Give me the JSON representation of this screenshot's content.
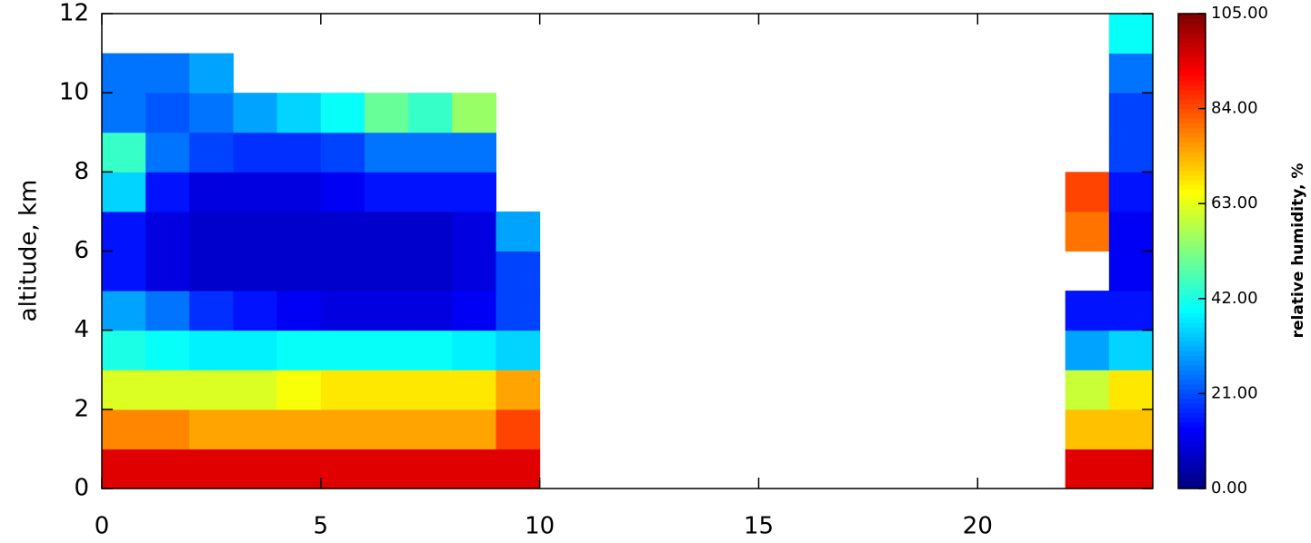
{
  "chart_data": {
    "type": "heatmap",
    "ylabel": "altitude, km",
    "colorbar_label": "relative humidity, %",
    "colormap": "jet",
    "x": [
      0,
      1,
      2,
      3,
      4,
      5,
      6,
      7,
      8,
      9,
      10,
      11,
      12,
      13,
      14,
      15,
      16,
      17,
      18,
      19,
      20,
      21,
      22,
      23,
      24
    ],
    "y": [
      0,
      1,
      2,
      3,
      4,
      5,
      6,
      7,
      8,
      9,
      10,
      11,
      12
    ],
    "z": [
      [
        95,
        95,
        95,
        95,
        95,
        95,
        95,
        95,
        95,
        95,
        null,
        null,
        null,
        null,
        null,
        null,
        null,
        null,
        null,
        null,
        null,
        null,
        95,
        95
      ],
      [
        78,
        78,
        75,
        75,
        75,
        75,
        75,
        75,
        75,
        85,
        null,
        null,
        null,
        null,
        null,
        null,
        null,
        null,
        null,
        null,
        null,
        null,
        72,
        72
      ],
      [
        62,
        62,
        62,
        62,
        65,
        68,
        68,
        68,
        68,
        75,
        null,
        null,
        null,
        null,
        null,
        null,
        null,
        null,
        null,
        null,
        null,
        null,
        60,
        68
      ],
      [
        42,
        40,
        38,
        38,
        40,
        40,
        40,
        40,
        38,
        35,
        null,
        null,
        null,
        null,
        null,
        null,
        null,
        null,
        null,
        null,
        null,
        null,
        30,
        35
      ],
      [
        30,
        25,
        18,
        15,
        12,
        10,
        10,
        10,
        12,
        20,
        null,
        null,
        null,
        null,
        null,
        null,
        null,
        null,
        null,
        null,
        null,
        null,
        15,
        15
      ],
      [
        15,
        10,
        8,
        8,
        8,
        8,
        8,
        8,
        10,
        20,
        null,
        null,
        null,
        null,
        null,
        null,
        null,
        null,
        null,
        null,
        null,
        null,
        null,
        12
      ],
      [
        15,
        10,
        8,
        8,
        8,
        8,
        8,
        8,
        10,
        30,
        null,
        null,
        null,
        null,
        null,
        null,
        null,
        null,
        null,
        null,
        null,
        null,
        80,
        12
      ],
      [
        35,
        15,
        10,
        10,
        10,
        12,
        15,
        15,
        15,
        null,
        null,
        null,
        null,
        null,
        null,
        null,
        null,
        null,
        null,
        null,
        null,
        null,
        85,
        15
      ],
      [
        45,
        25,
        20,
        18,
        18,
        20,
        25,
        25,
        25,
        null,
        null,
        null,
        null,
        null,
        null,
        null,
        null,
        null,
        null,
        null,
        null,
        null,
        null,
        20
      ],
      [
        25,
        22,
        25,
        30,
        35,
        40,
        50,
        45,
        55,
        null,
        null,
        null,
        null,
        null,
        null,
        null,
        null,
        null,
        null,
        null,
        null,
        null,
        null,
        20
      ],
      [
        25,
        25,
        30,
        null,
        null,
        null,
        null,
        null,
        null,
        null,
        null,
        null,
        null,
        null,
        null,
        null,
        null,
        null,
        null,
        null,
        null,
        null,
        null,
        25
      ],
      [
        null,
        null,
        null,
        null,
        null,
        null,
        null,
        null,
        null,
        null,
        null,
        null,
        null,
        null,
        null,
        null,
        null,
        null,
        null,
        null,
        null,
        null,
        null,
        40
      ]
    ],
    "xlim": [
      0,
      24
    ],
    "xticks": [
      0,
      5,
      10,
      15,
      20
    ],
    "ylim": [
      0,
      12
    ],
    "yticks": [
      0,
      2,
      4,
      6,
      8,
      10,
      12
    ],
    "zlim": [
      0,
      105
    ],
    "zticks": [
      {
        "value": 0,
        "label": "0.00"
      },
      {
        "value": 21,
        "label": "21.00"
      },
      {
        "value": 42,
        "label": "42.00"
      },
      {
        "value": 63,
        "label": "63.00"
      },
      {
        "value": 84,
        "label": "84.00"
      },
      {
        "value": 105,
        "label": "105.00"
      }
    ]
  }
}
